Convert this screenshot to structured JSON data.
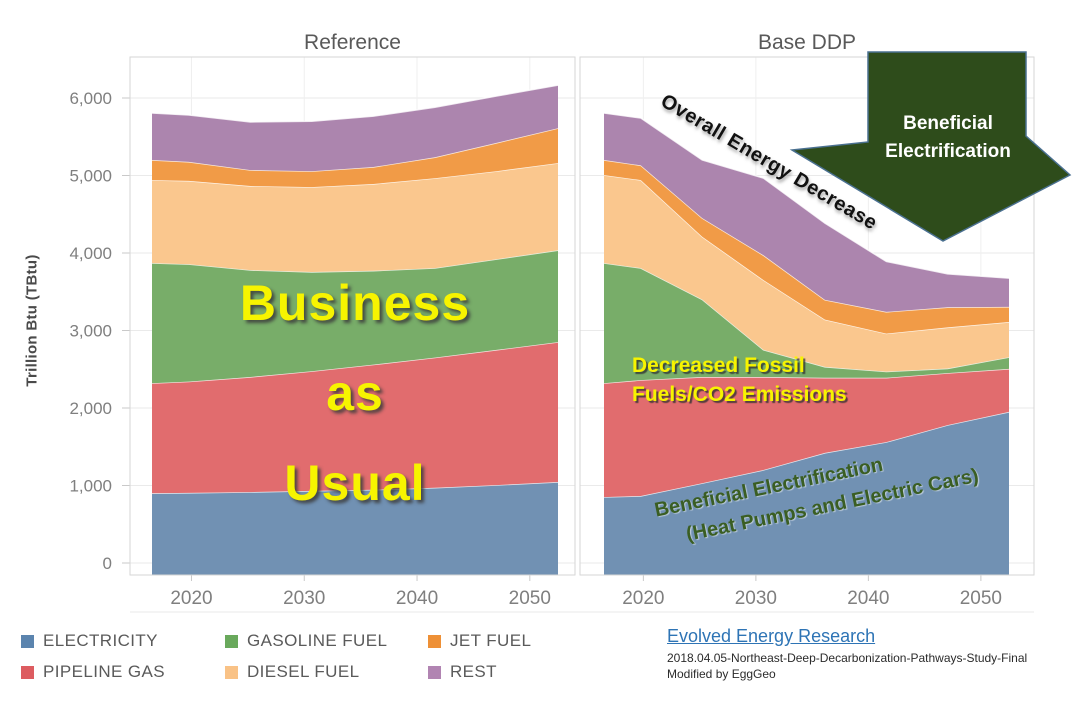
{
  "panels": {
    "left_title": "Reference",
    "right_title": "Base DDP"
  },
  "y_axis": {
    "title": "Trillion Btu (TBtu)"
  },
  "legend": {
    "items": [
      {
        "label": "ELECTRICITY",
        "color": "#5b84ae",
        "col": 0,
        "row": 0
      },
      {
        "label": "PIPELINE GAS",
        "color": "#dd5c60",
        "col": 0,
        "row": 1
      },
      {
        "label": "GASOLINE FUEL",
        "color": "#69a95c",
        "col": 1,
        "row": 0
      },
      {
        "label": "DIESEL FUEL",
        "color": "#f9c286",
        "col": 1,
        "row": 1
      },
      {
        "label": "JET FUEL",
        "color": "#ee9036",
        "col": 2,
        "row": 0
      },
      {
        "label": "REST",
        "color": "#b184b2",
        "col": 2,
        "row": 1
      }
    ]
  },
  "annotations": {
    "business": {
      "line1": "Business",
      "line2": "as",
      "line3": "Usual"
    },
    "decreased": {
      "line1": "Decreased Fossil",
      "line2": "Fuels/CO2 Emissions"
    },
    "beneficial_rotated": {
      "line1": "Beneficial Electrification",
      "line2": "(Heat Pumps and Electric Cars)"
    },
    "overall": {
      "text": "Overall Energy Decrease"
    },
    "arrow": {
      "line1": "Beneficial",
      "line2": "Electrification",
      "fill": "#2e4c1b"
    }
  },
  "citation": {
    "link": "Evolved Energy Research",
    "line1": "2018.04.05-Northeast-Deep-Decarbonization-Pathways-Study-Final",
    "line2": "Modified by EggGeo"
  },
  "chart_data": {
    "type": "area",
    "stacked": true,
    "unit": "TBtu",
    "title": "",
    "ylabel": "Trillion Btu (TBtu)",
    "ylim": [
      0,
      6500
    ],
    "grid": true,
    "years": [
      2017,
      2020,
      2025,
      2030,
      2035,
      2040,
      2045,
      2050
    ],
    "x_tick_years": [
      2020,
      2030,
      2040,
      2050
    ],
    "x_tick_labels": [
      "2020",
      "2030",
      "2040",
      "2050"
    ],
    "y_ticks": [
      0,
      1000,
      2000,
      3000,
      4000,
      5000,
      6000
    ],
    "y_tick_labels": [
      "0",
      "1,000",
      "2,000",
      "3,000",
      "4,000",
      "5,000",
      "6,000"
    ],
    "panels": [
      {
        "name": "Reference",
        "series": [
          {
            "name": "ELECTRICITY",
            "fill": "#7191b3",
            "values": [
              900,
              905,
              915,
              930,
              945,
              970,
              1005,
              1045
            ]
          },
          {
            "name": "PIPELINE GAS",
            "fill": "#e16c6e",
            "values": [
              1420,
              1435,
              1485,
              1545,
              1615,
              1680,
              1745,
              1805
            ]
          },
          {
            "name": "GASOLINE FUEL",
            "fill": "#78ad69",
            "values": [
              1550,
              1515,
              1380,
              1280,
              1210,
              1155,
              1170,
              1185
            ]
          },
          {
            "name": "DIESEL FUEL",
            "fill": "#fac78e",
            "values": [
              1070,
              1075,
              1085,
              1095,
              1120,
              1160,
              1135,
              1125
            ]
          },
          {
            "name": "JET FUEL",
            "fill": "#f19b47",
            "values": [
              260,
              245,
              205,
              205,
              220,
              270,
              365,
              450
            ]
          },
          {
            "name": "REST",
            "fill": "#ac85ae",
            "values": [
              605,
              605,
              620,
              645,
              655,
              645,
              605,
              555
            ]
          }
        ]
      },
      {
        "name": "Base DDP",
        "series": [
          {
            "name": "ELECTRICITY",
            "fill": "#7191b3",
            "values": [
              850,
              865,
              1030,
              1200,
              1420,
              1560,
              1780,
              1950
            ]
          },
          {
            "name": "PIPELINE GAS",
            "fill": "#e16c6e",
            "values": [
              1470,
              1495,
              1370,
              1200,
              970,
              830,
              670,
              555
            ]
          },
          {
            "name": "GASOLINE FUEL",
            "fill": "#78ad69",
            "values": [
              1550,
              1445,
              1000,
              350,
              140,
              80,
              60,
              150
            ]
          },
          {
            "name": "DIESEL FUEL",
            "fill": "#fac78e",
            "values": [
              1135,
              1135,
              810,
              900,
              610,
              490,
              530,
              455
            ]
          },
          {
            "name": "JET FUEL",
            "fill": "#f19b47",
            "values": [
              195,
              190,
              240,
              320,
              255,
              280,
              260,
              195
            ]
          },
          {
            "name": "REST",
            "fill": "#ac85ae",
            "values": [
              605,
              610,
              750,
              995,
              990,
              650,
              430,
              370
            ]
          }
        ]
      }
    ]
  }
}
